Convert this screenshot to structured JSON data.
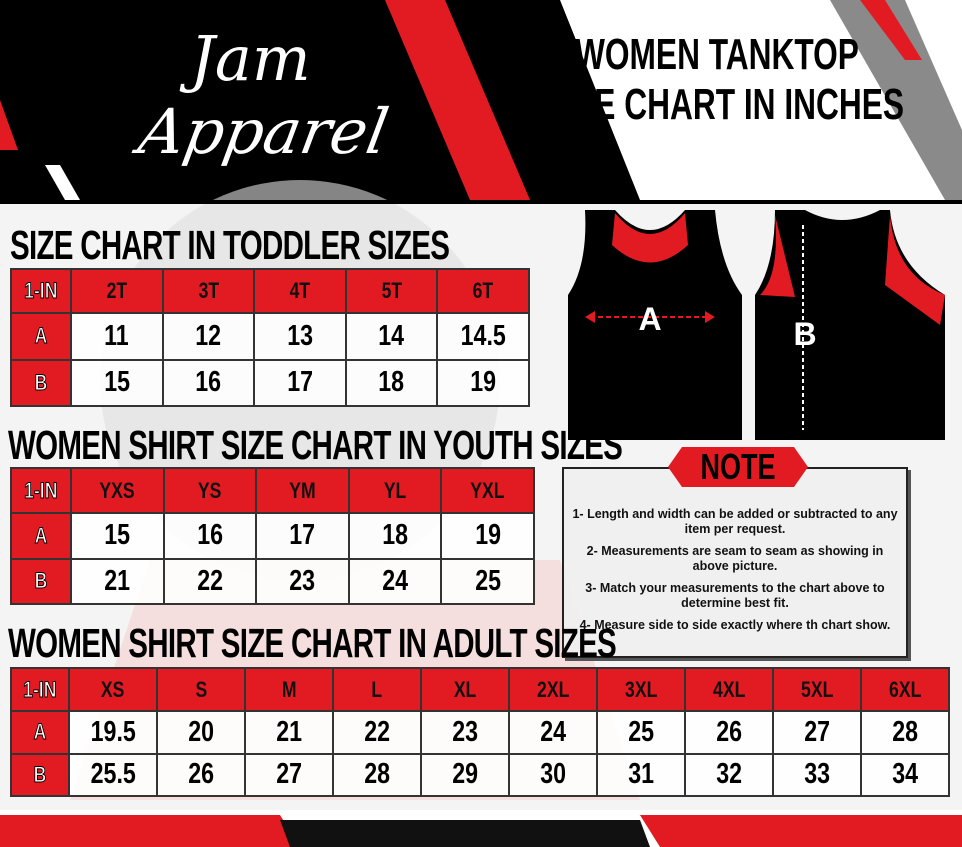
{
  "brand": {
    "line1": "Jam",
    "line2": "Apparel"
  },
  "header": {
    "title_line1": "WOMEN TANKTOP",
    "title_line2": "SIZE CHART IN INCHES"
  },
  "colors": {
    "accent": "#e21b23",
    "dark": "#000000",
    "gray": "#8a8a8a"
  },
  "diagram": {
    "front_label": "A",
    "back_label": "B"
  },
  "toddler": {
    "title": "SIZE CHART IN TODDLER  SIZES",
    "headers": [
      "1-IN",
      "2T",
      "3T",
      "4T",
      "5T",
      "6T"
    ],
    "rows": [
      {
        "label": "A",
        "values": [
          "11",
          "12",
          "13",
          "14",
          "14.5"
        ]
      },
      {
        "label": "B",
        "values": [
          "15",
          "16",
          "17",
          "18",
          "19"
        ]
      }
    ]
  },
  "youth": {
    "title": "WOMEN SHIRT SIZE CHART IN YOUTH  SIZES",
    "headers": [
      "1-IN",
      "YXS",
      "YS",
      "YM",
      "YL",
      "YXL"
    ],
    "rows": [
      {
        "label": "A",
        "values": [
          "15",
          "16",
          "17",
          "18",
          "19"
        ]
      },
      {
        "label": "B",
        "values": [
          "21",
          "22",
          "23",
          "24",
          "25"
        ]
      }
    ]
  },
  "adult": {
    "title": "WOMEN SHIRT SIZE CHART IN ADULT SIZES",
    "headers": [
      "1-IN",
      "XS",
      "S",
      "M",
      "L",
      "XL",
      "2XL",
      "3XL",
      "4XL",
      "5XL",
      "6XL"
    ],
    "rows": [
      {
        "label": "A",
        "values": [
          "19.5",
          "20",
          "21",
          "22",
          "23",
          "24",
          "25",
          "26",
          "27",
          "28"
        ]
      },
      {
        "label": "B",
        "values": [
          "25.5",
          "26",
          "27",
          "28",
          "29",
          "30",
          "31",
          "32",
          "33",
          "34"
        ]
      }
    ]
  },
  "note": {
    "title": "NOTE",
    "items": [
      "1- Length and width can be added or subtracted to any item per request.",
      "2- Measurements are seam to seam  as showing in above picture.",
      "3- Match your measurements to the chart above to determine best fit.",
      "4- Measure side to side exactly where th chart show."
    ]
  }
}
